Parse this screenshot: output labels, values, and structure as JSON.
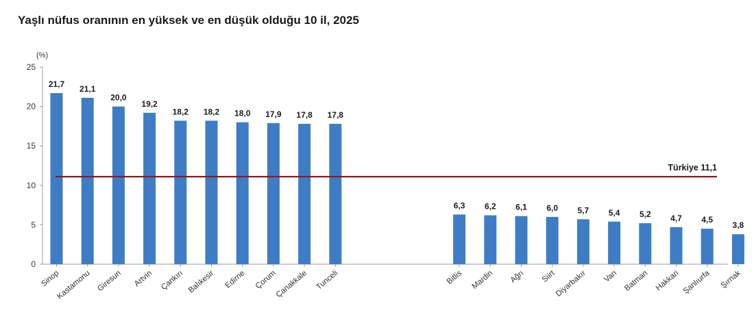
{
  "title": "Yaşlı nüfus oranının en yüksek ve en düşük olduğu 10 il, 2025",
  "chart_data": {
    "type": "bar",
    "title": "Yaşlı nüfus oranının en yüksek ve en düşük olduğu 10 il, 2025",
    "ylabel": "(%)",
    "ylim": [
      0,
      25
    ],
    "yticks": [
      0,
      5,
      10,
      15,
      20,
      25
    ],
    "grid": false,
    "bar_color": "#3f7cc6",
    "groups": [
      {
        "categories": [
          "Sinop",
          "Kastamonu",
          "Giresun",
          "Artvin",
          "Çankırı",
          "Balıkesir",
          "Edirne",
          "Çorum",
          "Çanakkale",
          "Tunceli"
        ],
        "values": [
          21.7,
          21.1,
          20.0,
          19.2,
          18.2,
          18.2,
          18.0,
          17.9,
          17.8,
          17.8
        ],
        "labels": [
          "21,7",
          "21,1",
          "20,0",
          "19,2",
          "18,2",
          "18,2",
          "18,0",
          "17,9",
          "17,8",
          "17,8"
        ]
      },
      {
        "categories": [
          "Bitlis",
          "Mardin",
          "Ağrı",
          "Siirt",
          "Diyarbakır",
          "Van",
          "Batman",
          "Hakkari",
          "Şanlıurfa",
          "Şırnak"
        ],
        "values": [
          6.3,
          6.2,
          6.1,
          6.0,
          5.7,
          5.4,
          5.2,
          4.7,
          4.5,
          3.8
        ],
        "labels": [
          "6,3",
          "6,2",
          "6,1",
          "6,0",
          "5,7",
          "5,4",
          "5,2",
          "4,7",
          "4,5",
          "3,8"
        ]
      }
    ],
    "reference_line": {
      "name": "Türkiye",
      "value": 11.1,
      "label": "11,1",
      "color": "#8b1c1c"
    }
  }
}
